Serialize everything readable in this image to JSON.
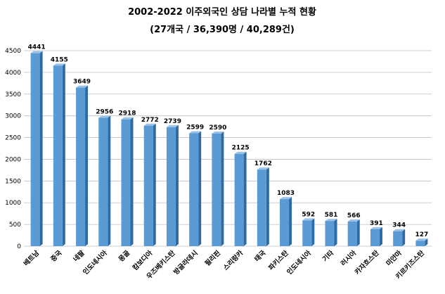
{
  "chart_data": {
    "type": "bar",
    "title": "2002-2022 이주외국인 상담 나라별 누적 현황",
    "subtitle": "(27개국 / 36,390명 / 40,289건)",
    "categories": [
      "베트남",
      "중국",
      "네팔",
      "인도네시아",
      "몽골",
      "캄보디아",
      "우즈베키스탄",
      "방글라데시",
      "필리핀",
      "스리랑카",
      "태국",
      "파키스탄",
      "인도네시아",
      "기타",
      "러시아",
      "카자흐스탄",
      "미얀마",
      "키르키즈스탄"
    ],
    "values": [
      4441,
      4155,
      3649,
      2956,
      2918,
      2772,
      2739,
      2599,
      2590,
      2125,
      1762,
      1083,
      592,
      581,
      566,
      391,
      344,
      127
    ],
    "ylim": [
      0,
      4500
    ],
    "yticks": [
      0,
      500,
      1000,
      1500,
      2000,
      2500,
      3000,
      3500,
      4000,
      4500
    ],
    "grid": true,
    "legend": "none",
    "colors": {
      "bar_front": "#5b9bd5",
      "bar_side": "#2e6aa3",
      "bar_top": "#9cc3e6",
      "grid": "#bfbfbf"
    }
  }
}
